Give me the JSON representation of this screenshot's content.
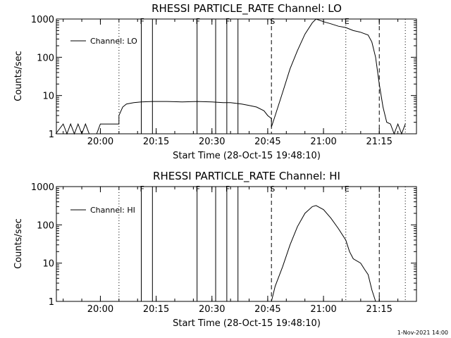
{
  "colors": {
    "background": "#ffffff",
    "foreground": "#000000"
  },
  "footer": {
    "date": "1-Nov-2021 14:00"
  },
  "chart_data": [
    {
      "type": "line",
      "title": "RHESSI PARTICLE_RATE Channel: LO",
      "xlabel": "Start Time (28-Oct-15 19:48:10)",
      "ylabel": "Counts/sec",
      "x_unit": "minutes",
      "xlim": [
        "19:48:10",
        "21:25:00"
      ],
      "ylim": [
        1,
        1000
      ],
      "yscale": "log",
      "x_ticks": [
        "20:00",
        "20:15",
        "20:30",
        "20:45",
        "21:00",
        "21:15"
      ],
      "y_ticks": [
        "1",
        "10",
        "100",
        "1000"
      ],
      "grid": false,
      "legend": {
        "position": "top-left",
        "label": "Channel: LO"
      },
      "markers": [
        {
          "time": "20:05",
          "style": "dotted",
          "label": ""
        },
        {
          "time": "20:11",
          "style": "solid",
          "label": "F"
        },
        {
          "time": "20:14",
          "style": "solid",
          "label": ""
        },
        {
          "time": "20:26",
          "style": "solid",
          "label": "F"
        },
        {
          "time": "20:31",
          "style": "solid",
          "label": ""
        },
        {
          "time": "20:34",
          "style": "solid",
          "label": "F"
        },
        {
          "time": "20:37",
          "style": "solid",
          "label": ""
        },
        {
          "time": "20:46",
          "style": "dashed",
          "label": "S"
        },
        {
          "time": "21:06",
          "style": "dotted",
          "label": "E"
        },
        {
          "time": "21:15",
          "style": "dashed",
          "label": ""
        },
        {
          "time": "21:22",
          "style": "dotted",
          "label": ""
        }
      ],
      "series": [
        {
          "name": "Channel: LO",
          "points": [
            [
              "19:48",
              1
            ],
            [
              "19:50",
              1.8
            ],
            [
              "19:51",
              1
            ],
            [
              "19:52",
              1.8
            ],
            [
              "19:53",
              1
            ],
            [
              "19:54",
              1.8
            ],
            [
              "19:55",
              1
            ],
            [
              "19:56",
              1.8
            ],
            [
              "19:57",
              1
            ],
            [
              "19:58",
              1
            ],
            [
              "19:59",
              1
            ],
            [
              "20:00",
              1.8
            ],
            [
              "20:02",
              1.8
            ],
            [
              "20:05",
              1.8
            ],
            [
              "20:05",
              3
            ],
            [
              "20:06",
              5
            ],
            [
              "20:07",
              6
            ],
            [
              "20:09",
              6.5
            ],
            [
              "20:11",
              6.8
            ],
            [
              "20:14",
              7
            ],
            [
              "20:18",
              7
            ],
            [
              "20:22",
              6.8
            ],
            [
              "20:26",
              7
            ],
            [
              "20:30",
              6.8
            ],
            [
              "20:33",
              6.5
            ],
            [
              "20:35",
              6.5
            ],
            [
              "20:38",
              6
            ],
            [
              "20:40",
              5.5
            ],
            [
              "20:42",
              5
            ],
            [
              "20:44",
              4
            ],
            [
              "20:45",
              3
            ],
            [
              "20:46",
              2.5
            ],
            [
              "20:46",
              1.5
            ],
            [
              "20:47",
              3
            ],
            [
              "20:49",
              12
            ],
            [
              "20:51",
              50
            ],
            [
              "20:53",
              150
            ],
            [
              "20:55",
              400
            ],
            [
              "20:57",
              800
            ],
            [
              "20:58",
              1000
            ],
            [
              "21:00",
              850
            ],
            [
              "21:02",
              750
            ],
            [
              "21:04",
              650
            ],
            [
              "21:06",
              600
            ],
            [
              "21:08",
              500
            ],
            [
              "21:10",
              450
            ],
            [
              "21:12",
              380
            ],
            [
              "21:13",
              250
            ],
            [
              "21:14",
              100
            ],
            [
              "21:15",
              20
            ],
            [
              "21:16",
              5
            ],
            [
              "21:17",
              2
            ],
            [
              "21:18",
              1.8
            ],
            [
              "21:19",
              1
            ],
            [
              "21:20",
              1.8
            ],
            [
              "21:21",
              1
            ],
            [
              "21:22",
              1.8
            ]
          ]
        }
      ]
    },
    {
      "type": "line",
      "title": "RHESSI PARTICLE_RATE Channel: HI",
      "xlabel": "Start Time (28-Oct-15 19:48:10)",
      "ylabel": "Counts/sec",
      "x_unit": "minutes",
      "xlim": [
        "19:48:10",
        "21:25:00"
      ],
      "ylim": [
        1,
        1000
      ],
      "yscale": "log",
      "x_ticks": [
        "20:00",
        "20:15",
        "20:30",
        "20:45",
        "21:00",
        "21:15"
      ],
      "y_ticks": [
        "1",
        "10",
        "100",
        "1000"
      ],
      "grid": false,
      "legend": {
        "position": "top-left",
        "label": "Channel: HI"
      },
      "markers": [
        {
          "time": "20:05",
          "style": "dotted",
          "label": ""
        },
        {
          "time": "20:11",
          "style": "solid",
          "label": "F"
        },
        {
          "time": "20:14",
          "style": "solid",
          "label": ""
        },
        {
          "time": "20:26",
          "style": "solid",
          "label": "F"
        },
        {
          "time": "20:31",
          "style": "solid",
          "label": ""
        },
        {
          "time": "20:34",
          "style": "solid",
          "label": "F"
        },
        {
          "time": "20:37",
          "style": "solid",
          "label": ""
        },
        {
          "time": "20:46",
          "style": "dashed",
          "label": "S"
        },
        {
          "time": "21:06",
          "style": "dotted",
          "label": "E"
        },
        {
          "time": "21:15",
          "style": "dashed",
          "label": ""
        },
        {
          "time": "21:22",
          "style": "dotted",
          "label": ""
        }
      ],
      "series": [
        {
          "name": "Channel: HI",
          "points": [
            [
              "20:46",
              1
            ],
            [
              "20:47",
              2.5
            ],
            [
              "20:49",
              8
            ],
            [
              "20:51",
              30
            ],
            [
              "20:53",
              90
            ],
            [
              "20:55",
              200
            ],
            [
              "20:57",
              300
            ],
            [
              "20:58",
              320
            ],
            [
              "21:00",
              250
            ],
            [
              "21:02",
              150
            ],
            [
              "21:04",
              80
            ],
            [
              "21:06",
              40
            ],
            [
              "21:07",
              20
            ],
            [
              "21:08",
              13
            ],
            [
              "21:10",
              10
            ],
            [
              "21:11",
              7
            ],
            [
              "21:12",
              5
            ],
            [
              "21:13",
              2
            ],
            [
              "21:14",
              1
            ]
          ]
        }
      ]
    }
  ]
}
